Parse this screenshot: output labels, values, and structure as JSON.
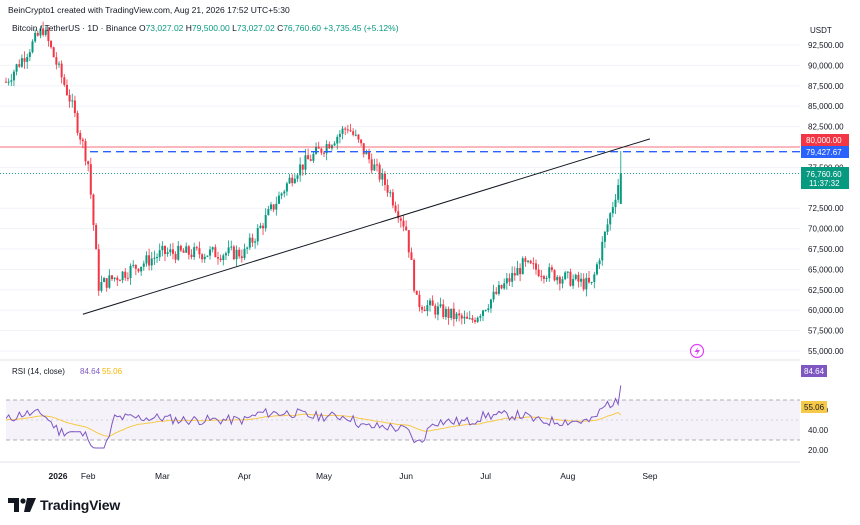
{
  "header": {
    "credit": "BeinCrypto1 created with TradingView.com, Aug 21, 2026 17:52 UTC+5:30",
    "symbol": "Bitcoin / TetherUS · 1D · Binance",
    "o_label": "O",
    "o_value": "73,027.02",
    "h_label": "H",
    "h_value": "79,500.00",
    "l_label": "L",
    "l_value": "73,027.02",
    "c_label": "C",
    "c_value": "76,760.60",
    "change": "+3,735.45 (+5.12%)"
  },
  "price_axis": {
    "unit": "USDT",
    "ticks": [
      "92,500.00",
      "90,000.00",
      "87,500.00",
      "85,000.00",
      "82,500.00",
      "77,500.00",
      "72,500.00",
      "70,000.00",
      "67,500.00",
      "65,000.00",
      "62,500.00",
      "60,000.00",
      "57,500.00",
      "55,000.00"
    ],
    "badge_red": "80,000.00",
    "badge_blue": "79,427.67",
    "badge_green_price": "76,760.60",
    "badge_green_timer": "11:37:32"
  },
  "rsi": {
    "label": "RSI (14, close)",
    "value": "84.64",
    "ma_value": "55.06",
    "ticks": [
      "60.00",
      "40.00",
      "20.00"
    ],
    "badge_value": "84.64",
    "badge_ma": "55.06"
  },
  "time_axis": {
    "labels": [
      "2026",
      "Feb",
      "Mar",
      "Apr",
      "May",
      "Jun",
      "Jul",
      "Aug",
      "Sep"
    ]
  },
  "brand": {
    "name": "TradingView"
  },
  "colors": {
    "up": "#089981",
    "down": "#f23645",
    "rsi_line": "#7e57c2",
    "rsi_ma": "#f7c948",
    "blue_dash": "#2962ff",
    "red_line": "#f23645"
  },
  "chart_data": {
    "type": "candlestick",
    "symbol": "BTC/USDT",
    "ylim": [
      53500,
      94000
    ],
    "horizontal_levels": [
      80000,
      79427.67
    ],
    "trendline": [
      [
        "Jan 30",
        59500
      ],
      [
        "Sep 1",
        81000
      ]
    ],
    "monthly_path": [
      {
        "date": "Jan 1",
        "close": 88000
      },
      {
        "date": "Jan 15",
        "close": 94500
      },
      {
        "date": "Jan 25",
        "close": 86000
      },
      {
        "date": "Feb 1",
        "close": 78000
      },
      {
        "date": "Feb 5",
        "close": 63000
      },
      {
        "date": "Mar 1",
        "close": 67000
      },
      {
        "date": "Apr 1",
        "close": 67000
      },
      {
        "date": "Apr 20",
        "close": 77000
      },
      {
        "date": "May 10",
        "close": 82500
      },
      {
        "date": "May 25",
        "close": 75000
      },
      {
        "date": "Jun 1",
        "close": 70000
      },
      {
        "date": "Jun 5",
        "close": 61000
      },
      {
        "date": "Jun 25",
        "close": 58500
      },
      {
        "date": "Jul 15",
        "close": 65500
      },
      {
        "date": "Aug 10",
        "close": 63000
      },
      {
        "date": "Aug 21",
        "close": 76760.6
      }
    ],
    "last": {
      "open": 73027.02,
      "high": 79500,
      "low": 73027.02,
      "close": 76760.6
    },
    "rsi": {
      "value": 84.64,
      "ma": 55.06,
      "levels": [
        70,
        50,
        30
      ]
    }
  }
}
